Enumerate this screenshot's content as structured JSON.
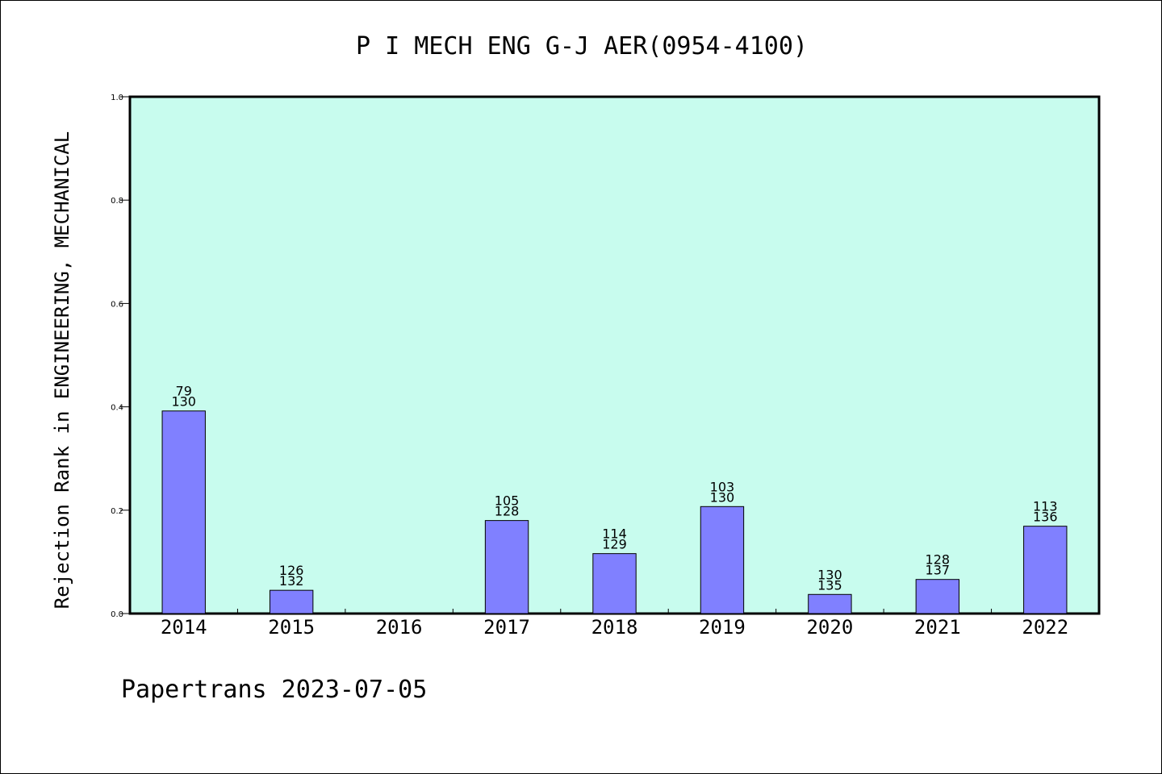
{
  "chart_data": {
    "type": "bar",
    "title": "P I MECH ENG G-J AER(0954-4100)",
    "ylabel": "Rejection Rank in ENGINEERING, MECHANICAL",
    "xlabel": "",
    "categories": [
      "2014",
      "2015",
      "2016",
      "2017",
      "2018",
      "2019",
      "2020",
      "2021",
      "2022"
    ],
    "values": [
      0.392,
      0.045,
      null,
      0.18,
      0.116,
      0.207,
      0.037,
      0.066,
      0.169
    ],
    "rank_labels": [
      "79",
      "126",
      "",
      "105",
      "114",
      "103",
      "130",
      "128",
      "113"
    ],
    "total_labels": [
      "130",
      "132",
      "",
      "128",
      "129",
      "130",
      "135",
      "137",
      "136"
    ],
    "ylim": [
      0,
      1.0
    ],
    "yticks": [
      "0.0",
      "0.2",
      "0.4",
      "0.6",
      "0.8",
      "1.0"
    ],
    "grid": false,
    "bar_color": "#8080ff",
    "plot_bg": "#c8fcee"
  },
  "footer": {
    "source_text": "Papertrans 2023-07-05"
  }
}
